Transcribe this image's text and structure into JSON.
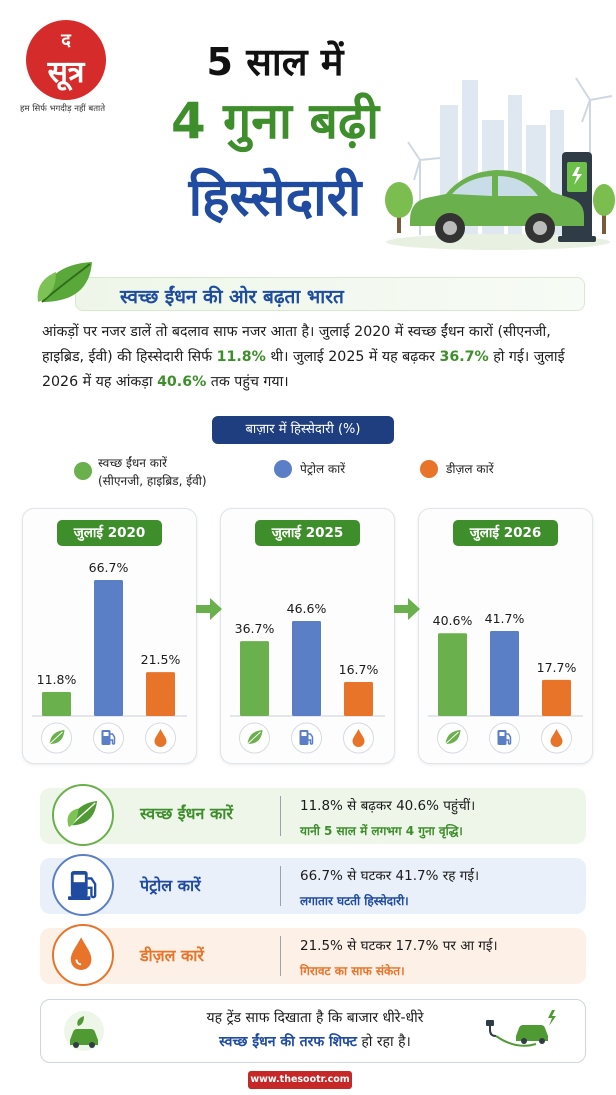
{
  "brand": {
    "logo_top": "द",
    "logo_main": "सूत्र",
    "tagline": "हम सिर्फ भगदीड़ नहीं बताते",
    "url": "www.thesootr.com"
  },
  "title": {
    "line1": "5 साल में",
    "line2": "4 गुना बढ़ी",
    "line3": "हिस्सेदारी"
  },
  "section": {
    "heading": "स्वच्छ ईंधन की ओर बढ़ता भारत",
    "para_1": "आंकड़ों पर नजर डालें तो बदलाव साफ नजर आता है। जुलाई 2020 में स्वच्छ ईंधन कारों (सीएनजी, हाइब्रिड, ईवी) की हिस्सेदारी सिर्फ ",
    "para_v1": "11.8%",
    "para_2": " थी। जुलाई 2025 में यह बढ़कर ",
    "para_v2": "36.7%",
    "para_3": " हो गई। जुलाई 2026 में यह आंकड़ा ",
    "para_v3": "40.6%",
    "para_4": " तक पहुंच गया।"
  },
  "share_label": "बाज़ार में हिस्सेदारी (%)",
  "legend": {
    "clean": "स्वच्छ ईंधन कारें",
    "clean_sub": "(सीएनजी, हाइब्रिड, ईवी)",
    "petrol": "पेट्रोल कारें",
    "diesel": "डीज़ल कारें"
  },
  "colors": {
    "clean": "#6ab04c",
    "petrol": "#5b7fc6",
    "diesel": "#e8742a",
    "title_green": "#3e8e2b",
    "title_blue": "#1f4ba0"
  },
  "chart_data": {
    "type": "bar",
    "categories": [
      "जुलाई 2020",
      "जुलाई 2025",
      "जुलाई 2026"
    ],
    "series": [
      {
        "name": "स्वच्छ ईंधन कारें",
        "values": [
          11.8,
          36.7,
          40.6
        ]
      },
      {
        "name": "पेट्रोल कारें",
        "values": [
          66.7,
          46.6,
          41.7
        ]
      },
      {
        "name": "डीज़ल कारें",
        "values": [
          21.5,
          16.7,
          17.7
        ]
      }
    ],
    "value_labels": [
      [
        "11.8%",
        "66.7%",
        "21.5%"
      ],
      [
        "36.7%",
        "46.6%",
        "16.7%"
      ],
      [
        "40.6%",
        "41.7%",
        "17.7%"
      ]
    ],
    "ylim": [
      0,
      70
    ],
    "unit": "%",
    "icons": [
      "leaf-icon",
      "fuel-pump-icon",
      "drop-icon"
    ]
  },
  "rows": [
    {
      "label": "स्वच्छ ईंधन कारें",
      "line1": "11.8% से बढ़कर 40.6% पहुंचीं।",
      "line2": "यानी 5 साल में लगभग 4 गुना वृद्धि।"
    },
    {
      "label": "पेट्रोल कारें",
      "line1": "66.7% से घटकर 41.7% रह गई।",
      "line2": "लगातार घटती हिस्सेदारी।"
    },
    {
      "label": "डीज़ल कारें",
      "line1": "21.5% से घटकर 17.7% पर आ गई।",
      "line2": "गिरावट का साफ संकेत।"
    }
  ],
  "bottom": {
    "line1": "यह ट्रेंड साफ दिखाता है कि बाजार धीरे-धीरे",
    "line2_em": "स्वच्छ ईंधन की तरफ शिफ्ट",
    "line2_rest": " हो रहा है।"
  }
}
